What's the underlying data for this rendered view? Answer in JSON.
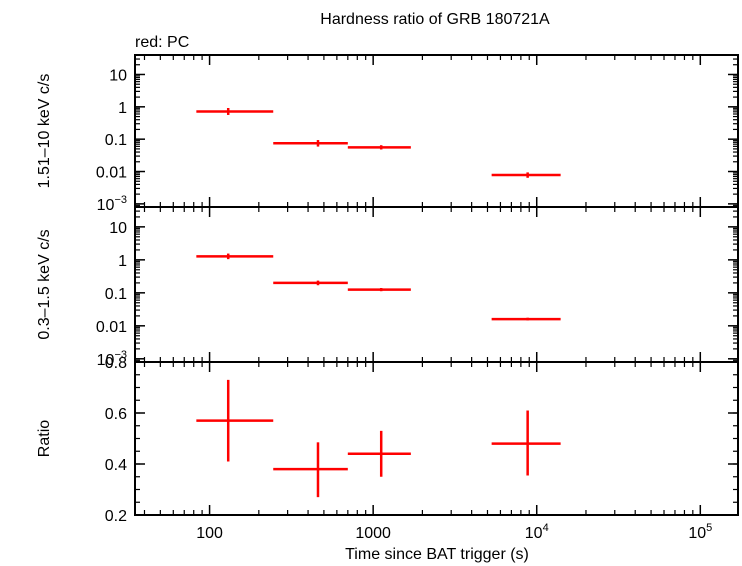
{
  "chart_data": {
    "type": "scatter",
    "title": "Hardness ratio of GRB 180721A",
    "legend_text": "red: PC",
    "xlabel": "Time since BAT trigger (s)",
    "x_scale": "log",
    "xlim": [
      35,
      170000
    ],
    "x_ticks": [
      {
        "v": 100,
        "label": "100",
        "exp": ""
      },
      {
        "v": 1000,
        "label": "1000",
        "exp": ""
      },
      {
        "v": 10000,
        "label": "10",
        "exp": "4"
      },
      {
        "v": 100000,
        "label": "10",
        "exp": "5"
      }
    ],
    "color": "#ff0000",
    "panels": [
      {
        "id": "hard",
        "ylabel": "1.51–10 keV c/s",
        "y_scale": "log",
        "ylim": [
          0.0008,
          40
        ],
        "y_ticks": [
          {
            "v": 10,
            "label": "10",
            "exp": ""
          },
          {
            "v": 1,
            "label": "1",
            "exp": ""
          },
          {
            "v": 0.1,
            "label": "0.1",
            "exp": ""
          },
          {
            "v": 0.01,
            "label": "0.01",
            "exp": ""
          },
          {
            "v": 0.001,
            "label": "10",
            "exp": "−3"
          }
        ],
        "points": [
          {
            "x": 130,
            "xlo": 83,
            "xhi": 245,
            "y": 0.72,
            "ylo": 0.56,
            "yhi": 0.92
          },
          {
            "x": 460,
            "xlo": 245,
            "xhi": 700,
            "y": 0.075,
            "ylo": 0.059,
            "yhi": 0.094
          },
          {
            "x": 1120,
            "xlo": 700,
            "xhi": 1700,
            "y": 0.056,
            "ylo": 0.048,
            "yhi": 0.065
          },
          {
            "x": 8800,
            "xlo": 5300,
            "xhi": 14000,
            "y": 0.0078,
            "ylo": 0.0064,
            "yhi": 0.0094
          }
        ]
      },
      {
        "id": "soft",
        "ylabel": "0.3–1.5 keV c/s",
        "y_scale": "log",
        "ylim": [
          0.0008,
          40
        ],
        "y_ticks": [
          {
            "v": 10,
            "label": "10",
            "exp": ""
          },
          {
            "v": 1,
            "label": "1",
            "exp": ""
          },
          {
            "v": 0.1,
            "label": "0.1",
            "exp": ""
          },
          {
            "v": 0.01,
            "label": "0.01",
            "exp": ""
          },
          {
            "v": 0.001,
            "label": "10",
            "exp": "−3"
          }
        ],
        "points": [
          {
            "x": 130,
            "xlo": 83,
            "xhi": 245,
            "y": 1.27,
            "ylo": 1.05,
            "yhi": 1.55
          },
          {
            "x": 460,
            "xlo": 245,
            "xhi": 700,
            "y": 0.2,
            "ylo": 0.17,
            "yhi": 0.235
          },
          {
            "x": 1120,
            "xlo": 700,
            "xhi": 1700,
            "y": 0.125,
            "ylo": 0.112,
            "yhi": 0.14
          },
          {
            "x": 8800,
            "xlo": 5300,
            "xhi": 14000,
            "y": 0.016,
            "ylo": 0.0146,
            "yhi": 0.0176
          }
        ]
      },
      {
        "id": "ratio",
        "ylabel": "Ratio",
        "y_scale": "linear",
        "ylim": [
          0.2,
          0.8
        ],
        "y_ticks": [
          {
            "v": 0.8,
            "label": "0.8",
            "exp": ""
          },
          {
            "v": 0.6,
            "label": "0.6",
            "exp": ""
          },
          {
            "v": 0.4,
            "label": "0.4",
            "exp": ""
          },
          {
            "v": 0.2,
            "label": "0.2",
            "exp": ""
          }
        ],
        "points": [
          {
            "x": 130,
            "xlo": 83,
            "xhi": 245,
            "y": 0.57,
            "ylo": 0.41,
            "yhi": 0.73
          },
          {
            "x": 460,
            "xlo": 245,
            "xhi": 700,
            "y": 0.38,
            "ylo": 0.27,
            "yhi": 0.485
          },
          {
            "x": 1120,
            "xlo": 700,
            "xhi": 1700,
            "y": 0.44,
            "ylo": 0.35,
            "yhi": 0.53
          },
          {
            "x": 8800,
            "xlo": 5300,
            "xhi": 14000,
            "y": 0.48,
            "ylo": 0.355,
            "yhi": 0.61
          }
        ]
      }
    ]
  }
}
